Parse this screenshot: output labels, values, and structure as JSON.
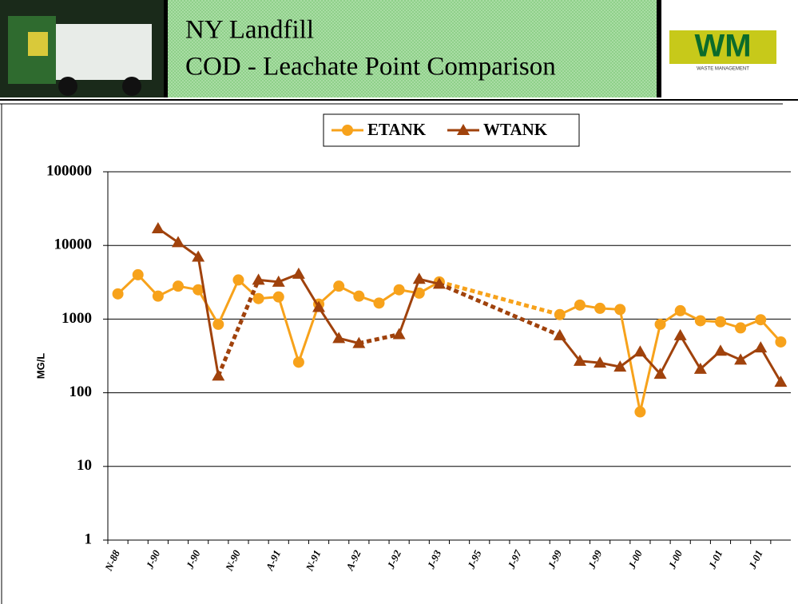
{
  "header": {
    "logo_mark": "WM",
    "logo_text": "WASTE MANAGEMENT"
  },
  "chart_data": {
    "type": "line",
    "title": "NY Landfill",
    "subtitle": "COD - Leachate Point Comparison",
    "y_label": "MG/L",
    "log_y": true,
    "grid": true,
    "legend": "top",
    "categories": [
      "N-88",
      null,
      "J-90",
      null,
      "J-90",
      null,
      "N-90",
      null,
      "A-91",
      null,
      "N-91",
      null,
      "A-92",
      null,
      "J-92",
      null,
      "J-93",
      null,
      "J-95",
      null,
      "J-97",
      null,
      "J-99",
      null,
      "J-99",
      null,
      "J-00",
      null,
      "J-00",
      null,
      "J-01",
      null,
      "J-01",
      null
    ],
    "series": [
      {
        "name": "ETANK",
        "color": "#f7a21b",
        "marker": "circle",
        "values": [
          2200,
          4000,
          2050,
          2800,
          2500,
          850,
          3400,
          1900,
          2000,
          260,
          1600,
          2800,
          2050,
          1650,
          2500,
          2250,
          3200,
          null,
          null,
          null,
          null,
          null,
          1150,
          1550,
          1400,
          1350,
          55,
          850,
          1300,
          950,
          920,
          760,
          980,
          490
        ]
      },
      {
        "name": "WTANK",
        "color": "#a0420c",
        "marker": "triangle",
        "values": [
          null,
          null,
          17000,
          11000,
          7000,
          170,
          null,
          3400,
          3200,
          4100,
          1450,
          550,
          470,
          null,
          620,
          3500,
          3000,
          null,
          null,
          null,
          null,
          null,
          600,
          270,
          255,
          225,
          360,
          180,
          600,
          210,
          370,
          280,
          410,
          140
        ]
      }
    ],
    "ylim": [
      1,
      100000
    ],
    "yticks": [
      1,
      10,
      100,
      1000,
      10000,
      100000
    ]
  }
}
